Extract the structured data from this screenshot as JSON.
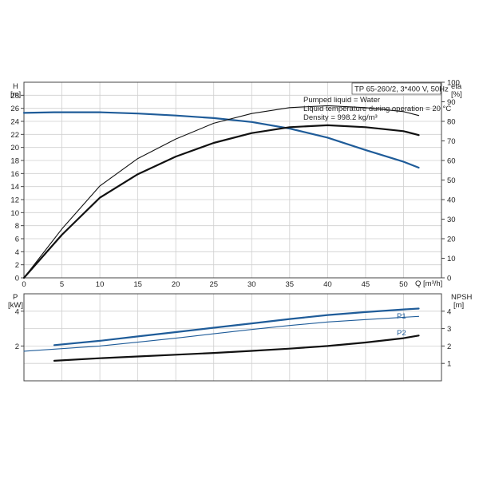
{
  "chart_data": [
    {
      "type": "line",
      "panel": "head-efficiency",
      "title_box": "TP 65-260/2, 3*400 V, 50Hz",
      "notes": [
        "Pumped liquid = Water",
        "Liquid temperature during operation = 20 °C",
        "Density = 998.2 kg/m³"
      ],
      "xlabel": "Q [m³/h]",
      "xlim": [
        0,
        55
      ],
      "x_ticks": [
        0,
        5,
        10,
        15,
        20,
        25,
        30,
        35,
        40,
        45,
        50
      ],
      "y_left": {
        "label_line1": "H",
        "label_line2": "[m]",
        "lim": [
          0,
          30
        ],
        "ticks": [
          0,
          2,
          4,
          6,
          8,
          10,
          12,
          14,
          16,
          18,
          20,
          22,
          24,
          26,
          28
        ]
      },
      "y_right": {
        "label_line1": "eta",
        "label_line2": "[%]",
        "lim": [
          0,
          100
        ],
        "ticks": [
          0,
          10,
          20,
          30,
          40,
          50,
          60,
          70,
          80,
          90,
          100
        ]
      },
      "grid": true,
      "series": [
        {
          "key": "H",
          "axis": "left",
          "color": "#1f5c99",
          "width": 2.2,
          "x": [
            0,
            4,
            10,
            15,
            20,
            25,
            30,
            35,
            40,
            45,
            50,
            52
          ],
          "y": [
            25.3,
            25.4,
            25.4,
            25.2,
            24.9,
            24.5,
            23.9,
            22.9,
            21.5,
            19.6,
            17.8,
            16.9
          ]
        },
        {
          "key": "eta-upper",
          "axis": "right",
          "color": "#111111",
          "width": 1.1,
          "x": [
            0,
            5,
            10,
            15,
            20,
            25,
            30,
            35,
            40,
            45,
            50,
            52
          ],
          "y": [
            0,
            25,
            47,
            61,
            71,
            79,
            84,
            87,
            88,
            87,
            85,
            83
          ]
        },
        {
          "key": "eta-lower",
          "axis": "right",
          "color": "#111111",
          "width": 2.2,
          "x": [
            0,
            5,
            10,
            15,
            20,
            25,
            30,
            35,
            40,
            45,
            50,
            52
          ],
          "y": [
            0,
            22,
            41,
            53,
            62,
            69,
            74,
            77,
            78,
            77,
            75,
            73
          ]
        }
      ]
    },
    {
      "type": "line",
      "panel": "power-npsh",
      "xlim": [
        0,
        55
      ],
      "x_ticks": [
        0,
        5,
        10,
        15,
        20,
        25,
        30,
        35,
        40,
        45,
        50
      ],
      "y_left": {
        "label_line1": "P",
        "label_line2": "[kW]",
        "lim": [
          0,
          5
        ],
        "ticks": [
          2,
          4
        ]
      },
      "y_right": {
        "label_line1": "NPSH",
        "label_line2": "[m]",
        "lim": [
          0,
          5
        ],
        "ticks": [
          1,
          2,
          3,
          4
        ]
      },
      "grid": true,
      "series": [
        {
          "key": "P1",
          "name": "P1",
          "axis": "left",
          "color": "#1f5c99",
          "width": 2.2,
          "x": [
            4,
            10,
            15,
            20,
            25,
            30,
            35,
            40,
            45,
            50,
            52
          ],
          "y": [
            2.05,
            2.3,
            2.55,
            2.8,
            3.05,
            3.3,
            3.55,
            3.78,
            3.95,
            4.1,
            4.15
          ]
        },
        {
          "key": "P2",
          "name": "P2",
          "axis": "left",
          "color": "#1f5c99",
          "width": 1.1,
          "x": [
            0,
            10,
            15,
            20,
            25,
            30,
            35,
            40,
            45,
            50,
            52
          ],
          "y": [
            1.7,
            2.0,
            2.22,
            2.45,
            2.7,
            2.95,
            3.18,
            3.38,
            3.52,
            3.65,
            3.7
          ]
        },
        {
          "key": "NPSH",
          "axis": "right",
          "color": "#111111",
          "width": 2.2,
          "x": [
            4,
            10,
            15,
            20,
            25,
            30,
            35,
            40,
            45,
            50,
            52
          ],
          "y": [
            1.15,
            1.3,
            1.4,
            1.5,
            1.6,
            1.72,
            1.85,
            2.0,
            2.2,
            2.45,
            2.6
          ]
        }
      ]
    }
  ]
}
